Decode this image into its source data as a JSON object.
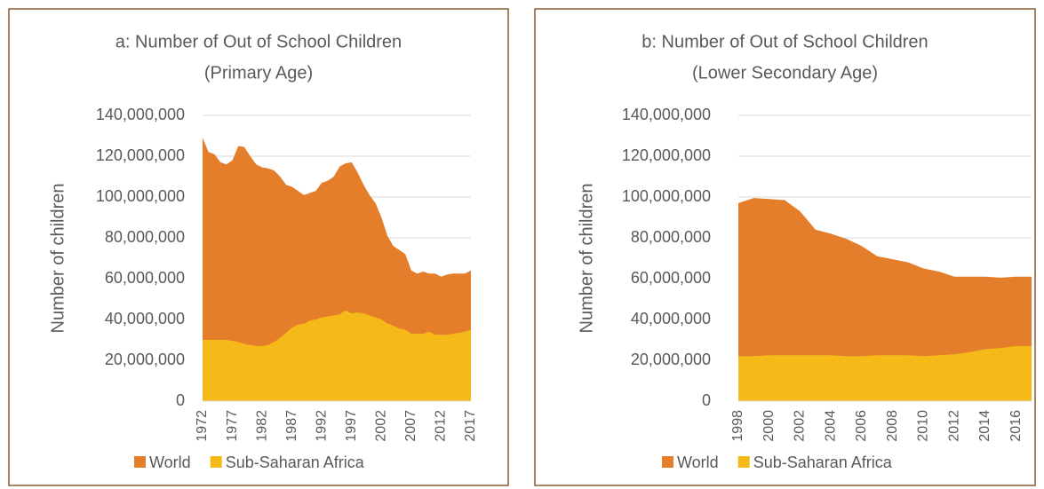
{
  "chart_data": [
    {
      "type": "area",
      "title": "a: Number of Out of School Children",
      "subtitle": "(Primary Age)",
      "y_label": "Number of children",
      "x": [
        1972,
        1973,
        1974,
        1975,
        1976,
        1977,
        1978,
        1979,
        1980,
        1981,
        1982,
        1983,
        1984,
        1985,
        1986,
        1987,
        1988,
        1989,
        1990,
        1991,
        1992,
        1993,
        1994,
        1995,
        1996,
        1997,
        1998,
        1999,
        2000,
        2001,
        2002,
        2003,
        2004,
        2005,
        2006,
        2007,
        2008,
        2009,
        2010,
        2011,
        2012,
        2013,
        2014,
        2015,
        2016,
        2017
      ],
      "series": [
        {
          "name": "World",
          "color": "#e47e2a",
          "values": [
            129000000,
            122000000,
            121000000,
            117000000,
            116000000,
            118000000,
            125000000,
            124500000,
            120000000,
            116000000,
            114500000,
            114000000,
            113000000,
            110000000,
            106000000,
            105000000,
            103000000,
            101000000,
            102000000,
            103000000,
            107000000,
            108000000,
            110000000,
            115000000,
            116500000,
            117000000,
            112000000,
            106000000,
            101000000,
            97000000,
            90000000,
            81000000,
            76000000,
            74000000,
            72000000,
            64000000,
            62500000,
            63500000,
            62500000,
            62500000,
            61000000,
            62000000,
            62500000,
            62500000,
            62500000,
            64000000
          ]
        },
        {
          "name": "Sub-Saharan Africa",
          "color": "#f5b918",
          "values": [
            30000000,
            30000000,
            30000000,
            30000000,
            30000000,
            29500000,
            29000000,
            28000000,
            27500000,
            27000000,
            27000000,
            27500000,
            29000000,
            31000000,
            33500000,
            36000000,
            37500000,
            38000000,
            39500000,
            40000000,
            41000000,
            41500000,
            42000000,
            42500000,
            44500000,
            43000000,
            43500000,
            43000000,
            42000000,
            41000000,
            40000000,
            38000000,
            37000000,
            35500000,
            35000000,
            33000000,
            33000000,
            33000000,
            34000000,
            32500000,
            32500000,
            32500000,
            33000000,
            33500000,
            34000000,
            35000000
          ]
        }
      ],
      "xlim": [
        1972,
        2017
      ],
      "xticks": [
        1972,
        1977,
        1982,
        1987,
        1992,
        1997,
        2002,
        2007,
        2012,
        2017
      ],
      "ylim": [
        0,
        140000000
      ],
      "yticks": [
        0,
        {
          "value": 20000000,
          "label": "20,000,000"
        },
        {
          "value": 40000000,
          "label": "40,000,000"
        },
        {
          "value": 60000000,
          "label": "60,000,000"
        },
        {
          "value": 80000000,
          "label": "80,000,000"
        },
        {
          "value": 100000000,
          "label": "100,000,000"
        },
        {
          "value": 120000000,
          "label": "120,000,000"
        },
        {
          "value": 140000000,
          "label": "140,000,000"
        }
      ],
      "grid": true,
      "legend": "bottom"
    },
    {
      "type": "area",
      "title": "b: Number of Out of School Children",
      "subtitle": "(Lower Secondary Age)",
      "y_label": "Number of children",
      "x": [
        1998,
        1999,
        2000,
        2001,
        2002,
        2003,
        2004,
        2005,
        2006,
        2007,
        2008,
        2009,
        2010,
        2011,
        2012,
        2013,
        2014,
        2015,
        2016,
        2017
      ],
      "series": [
        {
          "name": "World",
          "color": "#e47e2a",
          "values": [
            97000000,
            99500000,
            99000000,
            98500000,
            93000000,
            84000000,
            82000000,
            79500000,
            76000000,
            71000000,
            69500000,
            68000000,
            65000000,
            63500000,
            61000000,
            61000000,
            61000000,
            60500000,
            61000000,
            61000000
          ]
        },
        {
          "name": "Sub-Saharan Africa",
          "color": "#f5b918",
          "values": [
            22000000,
            22000000,
            22500000,
            22500000,
            22500000,
            22500000,
            22500000,
            22000000,
            22000000,
            22500000,
            22500000,
            22500000,
            22000000,
            22500000,
            23000000,
            24000000,
            25500000,
            26000000,
            27000000,
            27000000
          ]
        }
      ],
      "xlim": [
        1998,
        2017
      ],
      "xticks": [
        1998,
        2000,
        2002,
        2004,
        2006,
        2008,
        2010,
        2012,
        2014,
        2016
      ],
      "ylim": [
        0,
        140000000
      ],
      "yticks": [
        0,
        {
          "value": 20000000,
          "label": "20,000,000"
        },
        {
          "value": 40000000,
          "label": "40,000,000"
        },
        {
          "value": 60000000,
          "label": "60,000,000"
        },
        {
          "value": 80000000,
          "label": "80,000,000"
        },
        {
          "value": 100000000,
          "label": "100,000,000"
        },
        {
          "value": 120000000,
          "label": "120,000,000"
        },
        {
          "value": 140000000,
          "label": "140,000,000"
        }
      ],
      "grid": true,
      "legend": "bottom"
    }
  ]
}
